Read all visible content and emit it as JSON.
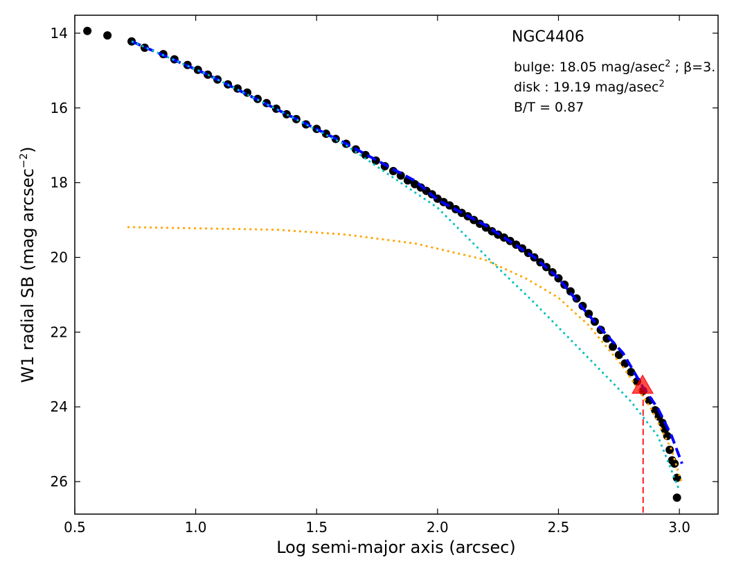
{
  "chart_data": {
    "type": "scatter",
    "title": "NGC4406",
    "annotations": [
      [
        "bulge: 18.05 mag/asec",
        "2",
        " ; β=3."
      ],
      [
        "disk  : 19.19 mag/asec",
        "2"
      ],
      [
        "B/T = 0.87"
      ]
    ],
    "xlabel": "Log semi-major axis (arcsec)",
    "ylabel": [
      "W1 radial SB (mag arcsec",
      "−2",
      ")"
    ],
    "xlim": [
      0.5,
      3.16
    ],
    "ylim": [
      26.87,
      13.52
    ],
    "xticks": [
      0.5,
      {
        "value": 1.0,
        "label": "1.0"
      },
      1.5,
      {
        "value": 2.0,
        "label": "2.0"
      },
      2.5,
      {
        "value": 3.0,
        "label": "3.0"
      }
    ],
    "yticks": [
      14,
      16,
      18,
      20,
      22,
      24,
      26
    ],
    "series": [
      {
        "kind": "points",
        "color": "#000000",
        "x": [
          0.552,
          0.635,
          0.735,
          0.789,
          0.866,
          0.912,
          0.966,
          1.009,
          1.05,
          1.09,
          1.133,
          1.173,
          1.213,
          1.256,
          1.293,
          1.333,
          1.376,
          1.416,
          1.456,
          1.5,
          1.539,
          1.579,
          1.622,
          1.662,
          1.702,
          1.745,
          1.782,
          1.817,
          1.848,
          1.877,
          1.906,
          1.931,
          1.954,
          1.977,
          2.0,
          2.025,
          2.05,
          2.075,
          2.1,
          2.125,
          2.15,
          2.175,
          2.2,
          2.225,
          2.25,
          2.275,
          2.3,
          2.325,
          2.35,
          2.375,
          2.4,
          2.425,
          2.45,
          2.475,
          2.5,
          2.525,
          2.55,
          2.575,
          2.6,
          2.625,
          2.65,
          2.675,
          2.7,
          2.725,
          2.75,
          2.775,
          2.8,
          2.825,
          2.85,
          2.875,
          2.9,
          2.915,
          2.93,
          2.94,
          2.95,
          2.96,
          2.97,
          2.98,
          2.99,
          2.99
        ],
        "values": [
          13.94,
          14.06,
          14.22,
          14.39,
          14.56,
          14.7,
          14.85,
          14.98,
          15.11,
          15.24,
          15.37,
          15.48,
          15.59,
          15.76,
          15.87,
          16.02,
          16.17,
          16.3,
          16.44,
          16.56,
          16.69,
          16.83,
          16.96,
          17.11,
          17.26,
          17.41,
          17.56,
          17.69,
          17.81,
          17.94,
          18.04,
          18.13,
          18.22,
          18.31,
          18.43,
          18.52,
          18.61,
          18.71,
          18.81,
          18.9,
          19.0,
          19.1,
          19.2,
          19.3,
          19.39,
          19.47,
          19.56,
          19.66,
          19.76,
          19.88,
          20.0,
          20.13,
          20.26,
          20.4,
          20.56,
          20.73,
          20.91,
          21.1,
          21.3,
          21.51,
          21.72,
          21.94,
          22.17,
          22.39,
          22.61,
          22.84,
          23.07,
          23.32,
          23.57,
          23.83,
          24.09,
          24.26,
          24.43,
          24.6,
          24.78,
          25.15,
          25.43,
          25.52,
          25.9,
          26.43
        ]
      },
      {
        "kind": "line",
        "linestyle": "dashed",
        "color": "#0000ff",
        "x": [
          0.735,
          1.05,
          1.336,
          1.622,
          1.909,
          2.0,
          2.195,
          2.401,
          2.498,
          2.624,
          2.767,
          2.85,
          2.911,
          2.968,
          3.011
        ],
        "values": [
          14.22,
          15.11,
          16.04,
          16.96,
          17.96,
          18.46,
          19.13,
          20.0,
          20.54,
          21.54,
          22.56,
          23.48,
          24.04,
          24.78,
          25.52
        ]
      },
      {
        "kind": "line",
        "linestyle": "dotted",
        "color": "#00bfbf",
        "x": [
          0.735,
          1.05,
          1.336,
          1.622,
          1.797,
          2.0,
          2.229,
          2.401,
          2.598,
          2.799,
          2.911,
          2.996
        ],
        "values": [
          14.22,
          15.11,
          16.04,
          17.0,
          17.78,
          18.67,
          20.15,
          21.22,
          22.52,
          23.85,
          24.78,
          26.17
        ]
      },
      {
        "kind": "line",
        "linestyle": "dotted",
        "color": "#ffa500",
        "x": [
          0.718,
          1.336,
          1.622,
          1.909,
          2.195,
          2.367,
          2.498,
          2.624,
          2.767,
          2.882,
          2.968,
          3.011
        ],
        "values": [
          19.19,
          19.26,
          19.39,
          19.63,
          20.06,
          20.57,
          21.07,
          21.81,
          22.93,
          24.04,
          25.15,
          26.07
        ]
      },
      {
        "kind": "triangle",
        "color": "#ff0000",
        "x": [
          2.848
        ],
        "values": [
          23.43
        ]
      }
    ],
    "vlines": [
      {
        "x": 2.85,
        "ymin": 23.55,
        "color": "#ff0000"
      }
    ]
  }
}
